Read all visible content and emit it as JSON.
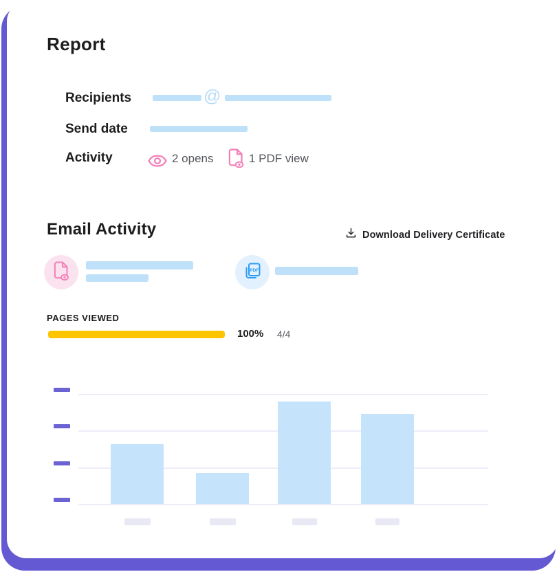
{
  "report": {
    "title": "Report",
    "rows": [
      {
        "label": "Recipients",
        "value_redacted": true
      },
      {
        "label": "Send date",
        "value_redacted": true
      },
      {
        "label": "Activity",
        "value_redacted": false
      }
    ],
    "at_symbol": "@",
    "activity": {
      "opens": "2 opens",
      "pdf_views": "1 PDF view"
    }
  },
  "email": {
    "title": "Email Activity",
    "download_label": "Download Delivery Certificate",
    "attachments": [
      {
        "icon": "document-view-icon",
        "color_style": "pink",
        "text_redacted_lines": 2
      },
      {
        "icon": "pdf-copy-icon",
        "color_style": "blue",
        "text_redacted_lines": 1
      }
    ],
    "pages_viewed": {
      "label": "PAGES VIEWED",
      "percent": 100,
      "percent_label": "100%",
      "fraction": "4/4"
    }
  },
  "chart_data": {
    "type": "bar",
    "title": "",
    "xlabel": "",
    "ylabel": "",
    "categories": [
      "[redacted]",
      "[redacted]",
      "[redacted]",
      "[redacted]"
    ],
    "values": [
      1.63,
      0.85,
      2.8,
      2.46
    ],
    "ylim": [
      0,
      3
    ],
    "y_gridlines": 4,
    "grid": true,
    "legend": false,
    "axis_tick_labels_redacted": true,
    "bar_color": "#c5e4fb"
  },
  "colors": {
    "purple_frame": "#6459d3",
    "tick_purple": "#6b62d4",
    "redaction_blue": "#bee0f9",
    "at_blue": "#b4dbf8",
    "chart_bar_blue": "#c5e4fb",
    "pink_icon": "#f47fb7",
    "pink_circle_bg": "#fbe2ef",
    "blue_icon": "#2d9cf4",
    "blue_circle_bg": "#e2f1fd",
    "yellow": "#fdc500",
    "text_dark": "#1d1d1f",
    "text_gray": "#55585d",
    "gridline": "#edecf8",
    "xlabel_placeholder": "#e9e8f5"
  }
}
